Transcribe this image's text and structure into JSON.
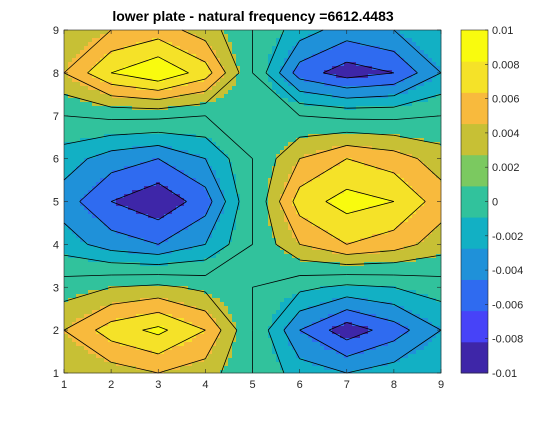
{
  "chart_data": {
    "type": "heatmap",
    "subtype": "filled contour",
    "title": "lower plate - natural frequency =6612.4483",
    "xlabel": "",
    "ylabel": "",
    "xlim": [
      1,
      9
    ],
    "ylim": [
      1,
      9
    ],
    "x_ticks": [
      "1",
      "2",
      "3",
      "4",
      "5",
      "6",
      "7",
      "8",
      "9"
    ],
    "y_ticks": [
      "1",
      "2",
      "3",
      "4",
      "5",
      "6",
      "7",
      "8",
      "9"
    ],
    "x": [
      1,
      2,
      3,
      4,
      5,
      6,
      7,
      8,
      9
    ],
    "y": [
      1,
      2,
      3,
      4,
      5,
      6,
      7,
      8,
      9
    ],
    "z": [
      [
        0.002,
        0.003,
        0.004,
        0.003,
        0.0,
        -0.003,
        -0.004,
        -0.003,
        -0.002
      ],
      [
        0.004,
        0.007,
        0.0085,
        0.006,
        0.0,
        -0.006,
        -0.0092,
        -0.007,
        -0.004
      ],
      [
        0.001,
        0.002,
        0.0025,
        0.0015,
        0.0,
        -0.0015,
        -0.0025,
        -0.002,
        -0.001
      ],
      [
        -0.003,
        -0.005,
        -0.006,
        -0.004,
        0.0,
        0.004,
        0.006,
        0.005,
        0.003
      ],
      [
        -0.005,
        -0.008,
        -0.0095,
        -0.007,
        0.0,
        0.007,
        0.0088,
        0.008,
        0.005
      ],
      [
        -0.003,
        -0.005,
        -0.006,
        -0.004,
        0.0,
        0.004,
        0.006,
        0.005,
        0.003
      ],
      [
        0.0,
        0.0005,
        0.0005,
        0.0,
        0.0,
        0.0,
        -0.0005,
        -0.0005,
        0.0
      ],
      [
        0.004,
        0.008,
        0.0098,
        0.007,
        0.0,
        -0.007,
        -0.009,
        -0.008,
        -0.004
      ],
      [
        0.002,
        0.004,
        0.005,
        0.003,
        0.0,
        -0.003,
        -0.005,
        -0.004,
        -0.002
      ]
    ],
    "levels": [
      -0.01,
      -0.008,
      -0.006,
      -0.004,
      -0.002,
      0,
      0.002,
      0.004,
      0.006,
      0.008,
      0.01
    ],
    "colorbar": {
      "limits": [
        -0.01,
        0.01
      ],
      "ticks": [
        0.01,
        0.008,
        0.006,
        0.004,
        0.002,
        0,
        -0.002,
        -0.004,
        -0.006,
        -0.008,
        -0.01
      ],
      "tick_labels": [
        "0.01",
        "0.008",
        "0.006",
        "0.004",
        "0.002",
        "0",
        "-0.002",
        "-0.004",
        "-0.006",
        "-0.008",
        "-0.01"
      ],
      "placement": "right"
    },
    "colormap": [
      "#3e26a8",
      "#4743f8",
      "#2f6bf0",
      "#1f91d9",
      "#12b0c4",
      "#31c29c",
      "#7bc960",
      "#c7c035",
      "#f8ba3d",
      "#f5e228",
      "#f9fb0e"
    ],
    "grid": false
  }
}
